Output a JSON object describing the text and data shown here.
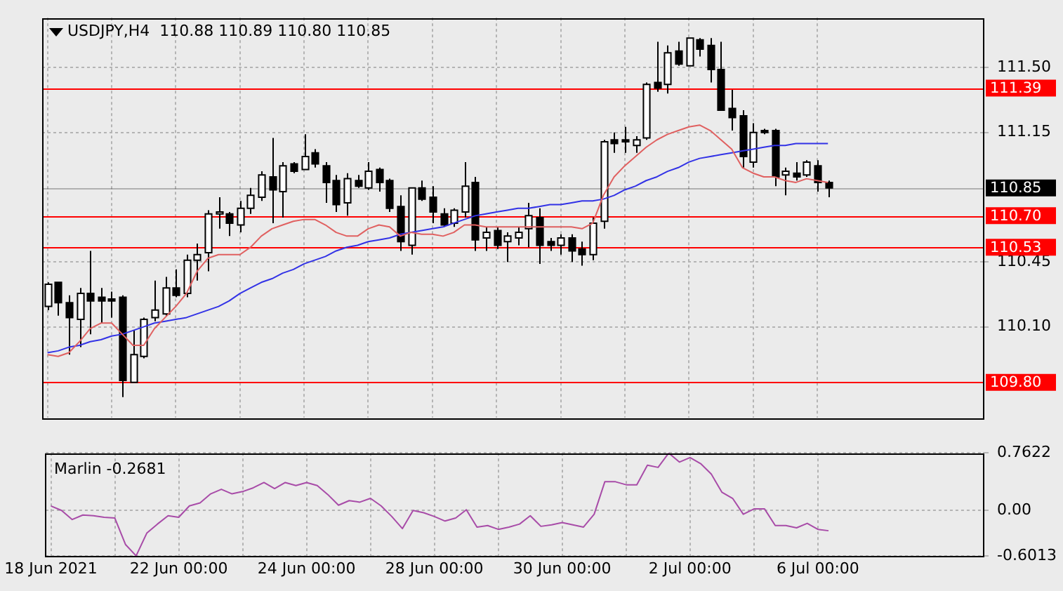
{
  "chart_data": [
    {
      "type": "candlestick",
      "title": "USDJPY,H4  110.88 110.89 110.80 110.85",
      "categories": [
        null,
        null,
        null,
        null,
        null,
        null,
        null,
        null,
        null,
        null,
        null,
        null,
        null,
        null,
        null,
        null,
        null,
        null,
        null,
        null,
        null,
        null,
        null,
        null,
        null,
        null,
        null,
        null,
        null,
        null,
        null,
        null,
        null,
        null,
        null,
        null,
        null,
        null,
        null,
        null,
        null,
        null,
        null,
        null,
        null,
        null,
        null,
        null,
        null,
        null,
        null,
        null,
        null,
        null,
        null,
        null,
        null,
        null,
        null,
        null,
        null,
        null,
        null,
        null,
        null,
        null,
        null,
        null,
        null,
        null,
        null,
        null,
        null,
        null
      ],
      "ohlc": [
        [
          110.21,
          110.34,
          110.19,
          110.33
        ],
        [
          110.34,
          110.34,
          110.16,
          110.23
        ],
        [
          110.23,
          110.27,
          109.95,
          110.15
        ],
        [
          110.14,
          110.31,
          109.99,
          110.28
        ],
        [
          110.28,
          110.51,
          110.06,
          110.24
        ],
        [
          110.26,
          110.31,
          110.12,
          110.24
        ],
        [
          110.25,
          110.29,
          110.15,
          110.24
        ],
        [
          110.26,
          110.27,
          109.72,
          109.81
        ],
        [
          109.8,
          110.08,
          109.8,
          109.95
        ],
        [
          109.94,
          110.15,
          109.93,
          110.14
        ],
        [
          110.15,
          110.35,
          110.13,
          110.19
        ],
        [
          110.17,
          110.37,
          110.16,
          110.31
        ],
        [
          110.31,
          110.41,
          110.26,
          110.27
        ],
        [
          110.28,
          110.49,
          110.26,
          110.46
        ],
        [
          110.46,
          110.55,
          110.35,
          110.49
        ],
        [
          110.5,
          110.73,
          110.4,
          110.71
        ],
        [
          110.71,
          110.8,
          110.63,
          110.72
        ],
        [
          110.71,
          110.72,
          110.59,
          110.66
        ],
        [
          110.65,
          110.78,
          110.61,
          110.74
        ],
        [
          110.74,
          110.85,
          110.71,
          110.81
        ],
        [
          110.8,
          110.94,
          110.78,
          110.92
        ],
        [
          110.91,
          111.12,
          110.66,
          110.84
        ],
        [
          110.83,
          110.99,
          110.69,
          110.97
        ],
        [
          110.98,
          110.99,
          110.93,
          110.94
        ],
        [
          110.95,
          111.14,
          110.95,
          111.02
        ],
        [
          111.04,
          111.06,
          110.96,
          110.98
        ],
        [
          110.97,
          110.99,
          110.77,
          110.88
        ],
        [
          110.89,
          110.92,
          110.72,
          110.76
        ],
        [
          110.77,
          110.93,
          110.7,
          110.9
        ],
        [
          110.89,
          110.92,
          110.85,
          110.86
        ],
        [
          110.85,
          110.99,
          110.84,
          110.94
        ],
        [
          110.95,
          110.96,
          110.83,
          110.88
        ],
        [
          110.89,
          110.9,
          110.72,
          110.74
        ],
        [
          110.75,
          110.81,
          110.51,
          110.56
        ],
        [
          110.54,
          110.85,
          110.49,
          110.85
        ],
        [
          110.85,
          110.89,
          110.78,
          110.79
        ],
        [
          110.8,
          110.86,
          110.66,
          110.72
        ],
        [
          110.71,
          110.74,
          110.64,
          110.65
        ],
        [
          110.66,
          110.74,
          110.64,
          110.73
        ],
        [
          110.72,
          110.99,
          110.69,
          110.86
        ],
        [
          110.88,
          110.91,
          110.51,
          110.57
        ],
        [
          110.58,
          110.64,
          110.51,
          110.61
        ],
        [
          110.62,
          110.64,
          110.52,
          110.54
        ],
        [
          110.56,
          110.61,
          110.45,
          110.59
        ],
        [
          110.58,
          110.64,
          110.54,
          110.61
        ],
        [
          110.63,
          110.77,
          110.53,
          110.7
        ],
        [
          110.69,
          110.74,
          110.44,
          110.54
        ],
        [
          110.56,
          110.58,
          110.51,
          110.54
        ],
        [
          110.54,
          110.6,
          110.49,
          110.58
        ],
        [
          110.58,
          110.6,
          110.45,
          110.51
        ],
        [
          110.52,
          110.56,
          110.43,
          110.49
        ],
        [
          110.49,
          110.69,
          110.46,
          110.66
        ],
        [
          110.67,
          111.11,
          110.63,
          111.1
        ],
        [
          111.11,
          111.15,
          111.04,
          111.09
        ],
        [
          111.11,
          111.18,
          111.04,
          111.1
        ],
        [
          111.08,
          111.13,
          111.04,
          111.11
        ],
        [
          111.12,
          111.42,
          111.11,
          111.41
        ],
        [
          111.42,
          111.64,
          111.37,
          111.39
        ],
        [
          111.41,
          111.62,
          111.36,
          111.58
        ],
        [
          111.59,
          111.64,
          111.51,
          111.52
        ],
        [
          111.51,
          111.66,
          111.51,
          111.66
        ],
        [
          111.65,
          111.66,
          111.56,
          111.6
        ],
        [
          111.62,
          111.66,
          111.42,
          111.49
        ],
        [
          111.49,
          111.64,
          111.27,
          111.27
        ],
        [
          111.28,
          111.38,
          111.16,
          111.23
        ],
        [
          111.24,
          111.27,
          110.96,
          111.02
        ],
        [
          110.99,
          111.2,
          110.96,
          111.15
        ],
        [
          111.16,
          111.17,
          111.14,
          111.15
        ],
        [
          111.16,
          111.17,
          110.86,
          110.91
        ],
        [
          110.92,
          110.96,
          110.81,
          110.94
        ],
        [
          110.93,
          110.99,
          110.89,
          110.91
        ],
        [
          110.92,
          111.0,
          110.91,
          110.99
        ],
        [
          110.97,
          111.0,
          110.83,
          110.88
        ],
        [
          110.88,
          110.89,
          110.8,
          110.85
        ]
      ],
      "series": [
        {
          "type": "line",
          "color": "#e06060",
          "values": [
            109.95,
            109.94,
            109.96,
            110.02,
            110.09,
            110.12,
            110.12,
            110.06,
            110.0,
            110.0,
            110.09,
            110.15,
            110.21,
            110.28,
            110.4,
            110.47,
            110.49,
            110.49,
            110.49,
            110.53,
            110.59,
            110.63,
            110.65,
            110.67,
            110.68,
            110.68,
            110.65,
            110.61,
            110.59,
            110.59,
            110.63,
            110.65,
            110.64,
            110.59,
            110.61,
            110.6,
            110.6,
            110.59,
            110.61,
            110.65,
            110.65,
            110.64,
            110.64,
            110.64,
            110.64,
            110.64,
            110.64,
            110.64,
            110.64,
            110.64,
            110.63,
            110.66,
            110.81,
            110.91,
            110.97,
            111.02,
            111.07,
            111.11,
            111.14,
            111.16,
            111.18,
            111.19,
            111.16,
            111.11,
            111.06,
            110.96,
            110.93,
            110.91,
            110.91,
            110.89,
            110.88,
            110.9,
            110.89,
            110.88
          ]
        },
        {
          "type": "line",
          "color": "#3232e6",
          "values": [
            109.96,
            109.97,
            109.99,
            110.0,
            110.02,
            110.03,
            110.05,
            110.06,
            110.08,
            110.1,
            110.12,
            110.13,
            110.14,
            110.15,
            110.17,
            110.19,
            110.21,
            110.24,
            110.28,
            110.31,
            110.34,
            110.36,
            110.39,
            110.41,
            110.44,
            110.46,
            110.48,
            110.51,
            110.53,
            110.54,
            110.56,
            110.57,
            110.58,
            110.6,
            110.61,
            110.62,
            110.63,
            110.64,
            110.66,
            110.68,
            110.7,
            110.71,
            110.72,
            110.73,
            110.74,
            110.74,
            110.75,
            110.76,
            110.76,
            110.77,
            110.78,
            110.78,
            110.79,
            110.81,
            110.84,
            110.86,
            110.89,
            110.91,
            110.94,
            110.96,
            110.99,
            111.01,
            111.02,
            111.03,
            111.04,
            111.05,
            111.06,
            111.07,
            111.08,
            111.08,
            111.09,
            111.09,
            111.09,
            111.09
          ]
        }
      ],
      "ylim": [
        109.61,
        111.77
      ],
      "yticks": [
        {
          "value": 111.5,
          "label": "111.50"
        },
        {
          "value": 111.15,
          "label": "111.15"
        },
        {
          "value": 110.45,
          "label": "110.45"
        },
        {
          "value": 110.1,
          "label": "110.10"
        }
      ],
      "ref_lines": [
        {
          "axis": "y",
          "value": 110.85,
          "label": "110.85",
          "color": "#000000"
        },
        {
          "axis": "y",
          "value": 111.39,
          "label": "111.39",
          "color": "#ff0000"
        },
        {
          "axis": "y",
          "value": 110.7,
          "label": "110.70",
          "color": "#ff0000"
        },
        {
          "axis": "y",
          "value": 110.53,
          "label": "110.53",
          "color": "#ff0000"
        },
        {
          "axis": "y",
          "value": 109.8,
          "label": "109.80",
          "color": "#ff0000"
        }
      ],
      "grid": true,
      "tick_labels": "y",
      "marker": "none"
    },
    {
      "type": "line",
      "title": "Marlin -0.2681",
      "categories": [
        "18 Jun 2021",
        null,
        null,
        null,
        null,
        null,
        null,
        null,
        null,
        null,
        null,
        null,
        "22 Jun 00:00",
        null,
        null,
        null,
        null,
        null,
        null,
        null,
        null,
        null,
        null,
        null,
        "24 Jun 00:00",
        null,
        null,
        null,
        null,
        null,
        null,
        null,
        null,
        null,
        null,
        null,
        "28 Jun 00:00",
        null,
        null,
        null,
        null,
        null,
        null,
        null,
        null,
        null,
        null,
        null,
        "30 Jun 00:00",
        null,
        null,
        null,
        null,
        null,
        null,
        null,
        null,
        null,
        null,
        null,
        "2 Jul 00:00",
        null,
        null,
        null,
        null,
        null,
        null,
        null,
        null,
        null,
        null,
        null,
        "6 Jul 00:00",
        null
      ],
      "values": [
        0.06,
        0.0,
        -0.12,
        -0.06,
        -0.07,
        -0.09,
        -0.1,
        -0.45,
        -0.6,
        -0.3,
        -0.18,
        -0.07,
        -0.09,
        0.06,
        0.1,
        0.22,
        0.28,
        0.22,
        0.25,
        0.3,
        0.37,
        0.29,
        0.37,
        0.33,
        0.37,
        0.33,
        0.21,
        0.07,
        0.13,
        0.11,
        0.16,
        0.06,
        -0.08,
        -0.24,
        0.0,
        -0.03,
        -0.08,
        -0.14,
        -0.1,
        0.01,
        -0.22,
        -0.2,
        -0.25,
        -0.22,
        -0.18,
        -0.07,
        -0.21,
        -0.19,
        -0.16,
        -0.19,
        -0.22,
        -0.05,
        0.38,
        0.38,
        0.34,
        0.34,
        0.6,
        0.57,
        0.76,
        0.64,
        0.7,
        0.62,
        0.48,
        0.24,
        0.16,
        -0.05,
        0.02,
        0.02,
        -0.2,
        -0.2,
        -0.23,
        -0.17,
        -0.25,
        -0.2681
      ],
      "color": "#a84ca8",
      "ylim": [
        -0.6013,
        0.7622
      ],
      "yticks": [
        0.7622,
        {
          "value": 0,
          "label": "0.00"
        },
        -0.6013
      ],
      "grid": true,
      "marker": "none"
    }
  ]
}
